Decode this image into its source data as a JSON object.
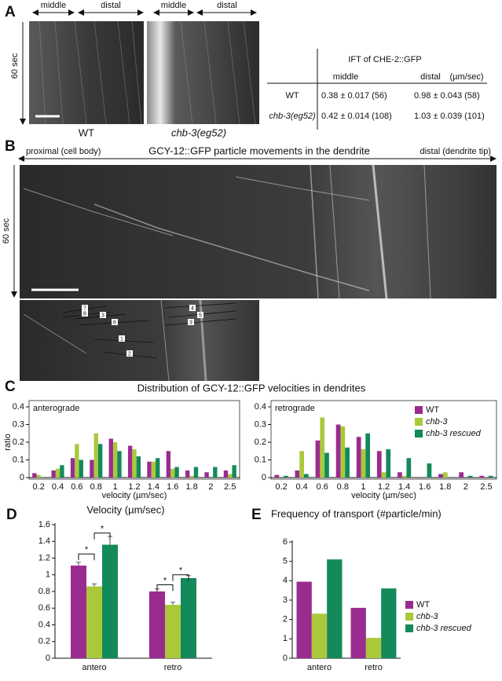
{
  "panel_labels": [
    "A",
    "B",
    "C",
    "D",
    "E"
  ],
  "panel_a": {
    "kymo_labels": [
      "middle",
      "distal",
      "middle",
      "distal"
    ],
    "y_label": "60 sec",
    "captions": [
      "WT",
      "chb-3(eg52)"
    ],
    "table": {
      "title": "IFT of CHE-2::GFP",
      "columns": [
        "middle",
        "distal",
        "(µm/sec)"
      ],
      "rows": [
        [
          "WT",
          "0.38 ± 0.017 (56)",
          "0.98 ± 0.043 (58)"
        ],
        [
          "chb-3(eg52)",
          "0.42 ± 0.014 (108)",
          "1.03 ± 0.039 (101)"
        ]
      ]
    }
  },
  "panel_b": {
    "left": "proximal (cell body)",
    "title": "GCY-12::GFP particle movements in the dendrite",
    "right": "distal (dendrite tip)",
    "y_label": "60 sec",
    "track_labels": [
      "7",
      "8",
      "3",
      "6",
      "1",
      "2",
      "4",
      "5",
      "3"
    ]
  },
  "chart_data": [
    {
      "type": "bar",
      "title": "Distribution of GCY-12::GFP velocities in dendrites",
      "subtitle": "anterograde",
      "x_label": "velocity (µm/sec)",
      "y_label": "ratio",
      "categories": [
        "0.2",
        "0.4",
        "0.6",
        "0.8",
        "1",
        "1.2",
        "1.4",
        "1.6",
        "1.8",
        "2",
        "2.5"
      ],
      "series": [
        {
          "color": "#9a2b8f",
          "values": [
            0.025,
            0.04,
            0.11,
            0.1,
            0.22,
            0.18,
            0.09,
            0.15,
            0.04,
            0.03,
            0.04
          ]
        },
        {
          "color": "#a9c93b",
          "values": [
            0.015,
            0.05,
            0.19,
            0.25,
            0.2,
            0.16,
            0.09,
            0.05,
            0.01,
            0,
            0.02
          ]
        },
        {
          "color": "#14895a",
          "values": [
            0,
            0.07,
            0.1,
            0.19,
            0.15,
            0.12,
            0.11,
            0.06,
            0.06,
            0.06,
            0.07
          ]
        }
      ],
      "ylim": [
        0,
        0.4
      ],
      "yticks": [
        0,
        0.1,
        0.2,
        0.3,
        0.4
      ]
    },
    {
      "type": "bar",
      "subtitle": "retrograde",
      "x_label": "velocity (µm/sec)",
      "categories": [
        "0.2",
        "0.4",
        "0.6",
        "0.8",
        "1",
        "1.2",
        "1.4",
        "1.6",
        "1.8",
        "2",
        "2.5"
      ],
      "series": [
        {
          "name": "WT",
          "color": "#9a2b8f",
          "values": [
            0.015,
            0.04,
            0.21,
            0.3,
            0.23,
            0.15,
            0.03,
            0,
            0.02,
            0.03,
            0.01
          ]
        },
        {
          "name": "chb-3",
          "color": "#a9c93b",
          "values": [
            0,
            0.15,
            0.34,
            0.29,
            0.16,
            0.03,
            0.01,
            0,
            0.03,
            0,
            0
          ]
        },
        {
          "name": "chb-3 rescued",
          "color": "#14895a",
          "values": [
            0.01,
            0.02,
            0.14,
            0.17,
            0.25,
            0.16,
            0.11,
            0.08,
            0,
            0.01,
            0.01
          ]
        }
      ],
      "ylim": [
        0,
        0.4
      ],
      "yticks": [
        0,
        0.1,
        0.2,
        0.3,
        0.4
      ],
      "legend": "top-right"
    },
    {
      "type": "bar",
      "title": "Velocity (µm/sec)",
      "categories": [
        "antero",
        "retro"
      ],
      "series": [
        {
          "color": "#9a2b8f",
          "values": [
            1.11,
            0.8
          ],
          "errors": [
            0.04,
            0.03
          ]
        },
        {
          "color": "#a9c93b",
          "values": [
            0.86,
            0.64
          ],
          "errors": [
            0.03,
            0.03
          ]
        },
        {
          "color": "#14895a",
          "values": [
            1.36,
            0.96
          ],
          "errors": [
            0.1,
            0.03
          ]
        }
      ],
      "ylim": [
        0,
        1.6
      ],
      "yticks": [
        0,
        0.2,
        0.4,
        0.6,
        0.8,
        1,
        1.2,
        1.4,
        1.6
      ],
      "annotations": [
        "*",
        "*",
        "*",
        "*"
      ]
    },
    {
      "type": "bar",
      "title": "Frequency of transport (#particle/min)",
      "categories": [
        "antero",
        "retro"
      ],
      "series": [
        {
          "name": "WT",
          "color": "#9a2b8f",
          "values": [
            3.95,
            2.6
          ]
        },
        {
          "name": "chb-3",
          "color": "#a9c93b",
          "values": [
            2.3,
            1.05
          ]
        },
        {
          "name": "chb-3 rescued",
          "color": "#14895a",
          "values": [
            5.1,
            3.6
          ]
        }
      ],
      "ylim": [
        0,
        6
      ],
      "yticks": [
        0,
        1,
        2,
        3,
        4,
        5,
        6
      ],
      "legend": "right"
    }
  ]
}
